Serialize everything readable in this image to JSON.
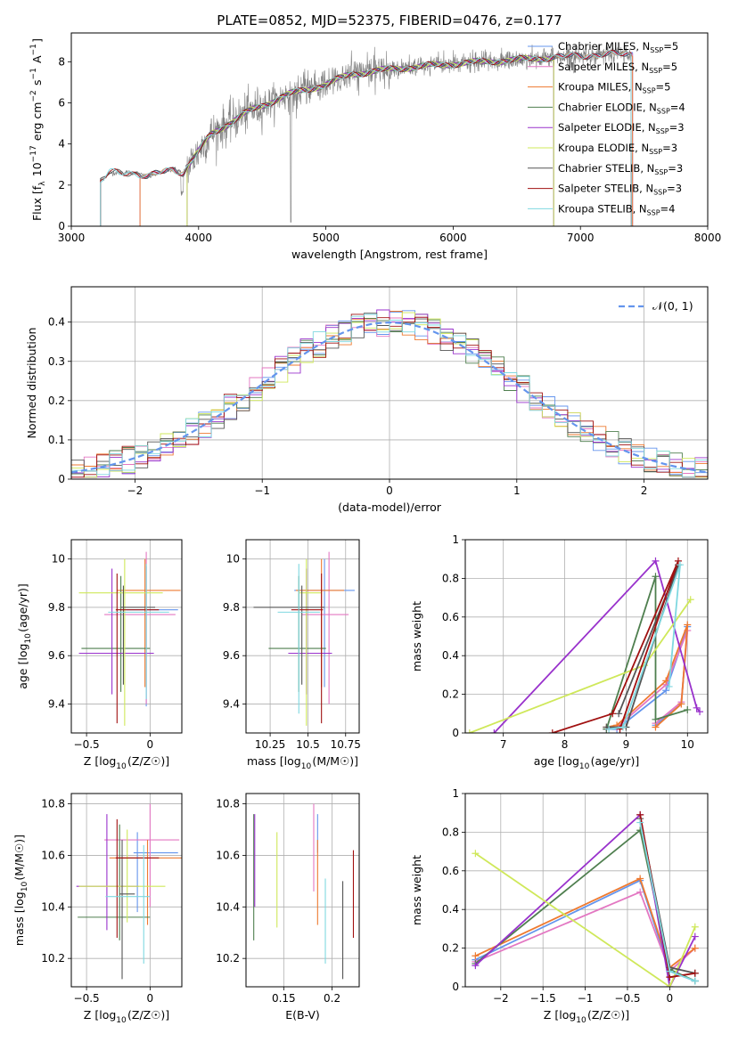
{
  "figure_title": "PLATE=0852, MJD=52375, FIBERID=0476, z=0.177",
  "colors": {
    "Chabrier MILES": "#6495ed",
    "Salpeter MILES": "#e377c2",
    "Kroupa MILES": "#ee7a30",
    "Chabrier ELODIE": "#4f7f4f",
    "Salpeter ELODIE": "#9932cc",
    "Kroupa ELODIE": "#cfe85a",
    "Chabrier STELIB": "#555555",
    "Salpeter STELIB": "#a01010",
    "Kroupa STELIB": "#7fd8e0",
    "data": "#808080",
    "normal": "#6495ed"
  },
  "chart_data": [
    {
      "id": "spectrum",
      "type": "line",
      "xlabel": "wavelength [Angstrom, rest frame]",
      "ylabel": "Flux [f_λ 10^-17 erg cm^-2 s^-1 A^-1]",
      "xlim": [
        3000,
        8000
      ],
      "ylim": [
        0,
        9.4
      ],
      "xticks": [
        3000,
        4000,
        5000,
        6000,
        7000,
        8000
      ],
      "yticks": [
        0,
        2,
        4,
        6,
        8
      ],
      "grid": false,
      "legend_position": "right",
      "legend": [
        {
          "model": "Chabrier MILES",
          "n": "5"
        },
        {
          "model": "Salpeter MILES",
          "n": "5"
        },
        {
          "model": "Kroupa MILES",
          "n": "5"
        },
        {
          "model": "Chabrier ELODIE",
          "n": "4"
        },
        {
          "model": "Salpeter ELODIE",
          "n": "3"
        },
        {
          "model": "Kroupa ELODIE",
          "n": "3"
        },
        {
          "model": "Chabrier STELIB",
          "n": "3"
        },
        {
          "model": "Salpeter STELIB",
          "n": "3"
        },
        {
          "model": "Kroupa STELIB",
          "n": "4"
        }
      ],
      "model_ranges": {
        "Chabrier MILES": [
          3540,
          7410
        ],
        "Salpeter MILES": [
          3540,
          7410
        ],
        "Kroupa MILES": [
          3540,
          7410
        ],
        "Chabrier ELODIE": [
          3910,
          6790
        ],
        "Salpeter ELODIE": [
          3910,
          6790
        ],
        "Kroupa ELODIE": [
          3910,
          6790
        ],
        "Chabrier STELIB": [
          3230,
          7400
        ],
        "Salpeter STELIB": [
          3230,
          7400
        ],
        "Kroupa STELIB": [
          3230,
          7400
        ]
      },
      "data_range": [
        3230,
        7410
      ],
      "continuum_knots": [
        [
          3230,
          2.2
        ],
        [
          3300,
          2.6
        ],
        [
          3500,
          2.6
        ],
        [
          3600,
          2.4
        ],
        [
          3800,
          2.8
        ],
        [
          3880,
          2.6
        ],
        [
          3960,
          3.3
        ],
        [
          4100,
          4.5
        ],
        [
          4400,
          5.6
        ],
        [
          4700,
          6.4
        ],
        [
          5000,
          6.9
        ],
        [
          5200,
          7.4
        ],
        [
          5600,
          7.7
        ],
        [
          6000,
          7.9
        ],
        [
          6500,
          8.1
        ],
        [
          7000,
          8.3
        ],
        [
          7410,
          8.4
        ]
      ]
    },
    {
      "id": "residuals",
      "type": "histogram",
      "xlabel": "(data-model)/error",
      "ylabel": "Normed distribution",
      "xlim": [
        -2.5,
        2.5
      ],
      "ylim": [
        0,
        0.49
      ],
      "xticks": [
        -2,
        -1,
        0,
        1,
        2
      ],
      "yticks": [
        0.0,
        0.1,
        0.2,
        0.3,
        0.4
      ],
      "grid": true,
      "bin_width": 0.1,
      "legend": "𝒩(0, 1)",
      "legend_position": "top-right"
    },
    {
      "id": "age-vs-Z",
      "type": "errorbar",
      "xlabel": "Z [log10(Z/Z☉)]",
      "ylabel": "age  [log10(age/yr)]",
      "xlim": [
        -0.62,
        0.25
      ],
      "ylim": [
        9.28,
        10.08
      ],
      "xticks": [
        -0.5,
        0.0
      ],
      "yticks": [
        9.4,
        9.6,
        9.8,
        10.0
      ],
      "grid": true,
      "points": [
        {
          "model": "Chabrier MILES",
          "x": -0.03,
          "y": 9.79,
          "ex": [
            0.16,
            0.25
          ],
          "ey": [
            0.4,
            0.18
          ]
        },
        {
          "model": "Salpeter MILES",
          "x": -0.03,
          "y": 9.77,
          "ex": [
            0.33,
            0.23
          ],
          "ey": [
            0.37,
            0.26
          ]
        },
        {
          "model": "Kroupa MILES",
          "x": -0.04,
          "y": 9.87,
          "ex": [
            0.22,
            0.28
          ],
          "ey": [
            0.4,
            0.13
          ]
        },
        {
          "model": "Chabrier ELODIE",
          "x": -0.23,
          "y": 9.63,
          "ex": [
            0.31,
            0.23
          ],
          "ey": [
            0.18,
            0.3
          ]
        },
        {
          "model": "Salpeter ELODIE",
          "x": -0.3,
          "y": 9.61,
          "ex": [
            0.26,
            0.33
          ],
          "ey": [
            0.17,
            0.35
          ]
        },
        {
          "model": "Kroupa ELODIE",
          "x": -0.2,
          "y": 9.86,
          "ex": [
            0.36,
            0.3
          ],
          "ey": [
            0.55,
            0.14
          ]
        },
        {
          "model": "Chabrier STELIB",
          "x": -0.21,
          "y": 9.8,
          "ex": [
            0.02,
            0.25
          ],
          "ey": [
            0.32,
            0.09
          ]
        },
        {
          "model": "Salpeter STELIB",
          "x": -0.26,
          "y": 9.79,
          "ex": [
            0.01,
            0.33
          ],
          "ey": [
            0.47,
            0.15
          ]
        },
        {
          "model": "Kroupa STELIB",
          "x": -0.03,
          "y": 9.78,
          "ex": [
            0.3,
            0.18
          ],
          "ey": [
            0.36,
            0.2
          ]
        }
      ]
    },
    {
      "id": "age-vs-mass",
      "type": "errorbar",
      "xlabel": "mass [log10(M/M☉)]",
      "ylabel": "",
      "xlim": [
        10.09,
        10.84
      ],
      "ylim": [
        9.28,
        10.08
      ],
      "xticks": [
        10.25,
        10.5,
        10.75
      ],
      "yticks": [
        9.4,
        9.6,
        9.8,
        10.0
      ],
      "grid": true,
      "points": [
        {
          "model": "Chabrier MILES",
          "x": 10.61,
          "y": 9.87,
          "ex": [
            0.2,
            0.2
          ],
          "ey": [
            0.4,
            0.13
          ]
        },
        {
          "model": "Salpeter MILES",
          "x": 10.64,
          "y": 9.77,
          "ex": [
            0.18,
            0.13
          ],
          "ey": [
            0.37,
            0.26
          ]
        },
        {
          "model": "Kroupa MILES",
          "x": 10.59,
          "y": 9.87,
          "ex": [
            0.17,
            0.15
          ],
          "ey": [
            0.4,
            0.13
          ]
        },
        {
          "model": "Chabrier ELODIE",
          "x": 10.44,
          "y": 9.63,
          "ex": [
            0.2,
            0.18
          ],
          "ey": [
            0.18,
            0.3
          ]
        },
        {
          "model": "Salpeter ELODIE",
          "x": 10.49,
          "y": 9.61,
          "ex": [
            0.12,
            0.17
          ],
          "ey": [
            0.17,
            0.35
          ]
        },
        {
          "model": "Kroupa ELODIE",
          "x": 10.49,
          "y": 9.86,
          "ex": [
            0.05,
            0.1
          ],
          "ey": [
            0.55,
            0.14
          ]
        },
        {
          "model": "Chabrier STELIB",
          "x": 10.46,
          "y": 9.8,
          "ex": [
            0.32,
            0.15
          ],
          "ey": [
            0.32,
            0.09
          ]
        },
        {
          "model": "Salpeter STELIB",
          "x": 10.59,
          "y": 9.79,
          "ex": [
            0.2,
            0.01
          ],
          "ey": [
            0.47,
            0.15
          ]
        },
        {
          "model": "Kroupa STELIB",
          "x": 10.44,
          "y": 9.78,
          "ex": [
            0.14,
            0.14
          ],
          "ey": [
            0.42,
            0.2
          ]
        }
      ]
    },
    {
      "id": "weight-vs-age",
      "type": "line",
      "xlabel": "age  [log10(age/yr)]",
      "ylabel": "mass weight",
      "xlim": [
        6.38,
        10.33
      ],
      "ylim": [
        0.0,
        1.0
      ],
      "xticks": [
        7,
        8,
        9,
        10
      ],
      "yticks": [
        0.0,
        0.2,
        0.4,
        0.6,
        0.8,
        1.0
      ],
      "grid": true,
      "series": [
        {
          "model": "Chabrier MILES",
          "x": [
            9.48,
            9.9,
            10.0,
            9.65,
            8.85,
            8.68
          ],
          "y": [
            0.04,
            0.15,
            0.55,
            0.22,
            0.02,
            0.02
          ]
        },
        {
          "model": "Salpeter MILES",
          "x": [
            9.48,
            9.9,
            10.0,
            9.65,
            8.85,
            8.68
          ],
          "y": [
            0.05,
            0.16,
            0.53,
            0.25,
            0.03,
            0.02
          ]
        },
        {
          "model": "Kroupa MILES",
          "x": [
            9.48,
            9.9,
            10.0,
            9.65,
            8.85,
            8.68
          ],
          "y": [
            0.03,
            0.15,
            0.56,
            0.27,
            0.04,
            0.03
          ]
        },
        {
          "model": "Chabrier ELODIE",
          "x": [
            10.0,
            9.48,
            9.48,
            8.68
          ],
          "y": [
            0.12,
            0.07,
            0.81,
            0.02
          ]
        },
        {
          "model": "Salpeter ELODIE",
          "x": [
            6.85,
            9.48,
            10.15,
            10.2
          ],
          "y": [
            0.0,
            0.89,
            0.13,
            0.11
          ]
        },
        {
          "model": "Kroupa ELODIE",
          "x": [
            6.45,
            9.3,
            10.05
          ],
          "y": [
            0.0,
            0.35,
            0.69
          ]
        },
        {
          "model": "Chabrier STELIB",
          "x": [
            8.68,
            9.0,
            9.85,
            8.88
          ],
          "y": [
            0.03,
            0.03,
            0.87,
            0.1
          ]
        },
        {
          "model": "Salpeter STELIB",
          "x": [
            7.8,
            8.78,
            9.85,
            8.9
          ],
          "y": [
            0.0,
            0.1,
            0.89,
            0.02
          ]
        },
        {
          "model": "Kroupa STELIB",
          "x": [
            8.72,
            8.95,
            9.88,
            9.7
          ],
          "y": [
            0.02,
            0.03,
            0.87,
            0.24
          ]
        }
      ]
    },
    {
      "id": "mass-vs-Z",
      "type": "errorbar",
      "xlabel": "Z [log10(Z/Z☉)]",
      "ylabel": "mass [log10(M/M☉)]",
      "xlim": [
        -0.62,
        0.25
      ],
      "ylim": [
        10.09,
        10.84
      ],
      "xticks": [
        -0.5,
        0.0
      ],
      "yticks": [
        10.2,
        10.4,
        10.6,
        10.8
      ],
      "grid": true,
      "points": [
        {
          "model": "Chabrier MILES",
          "x": -0.1,
          "y": 10.61,
          "ex": [
            0.03,
            0.32
          ],
          "ey": [
            0.23,
            0.08
          ]
        },
        {
          "model": "Salpeter MILES",
          "x": 0.0,
          "y": 10.66,
          "ex": [
            0.36,
            0.23
          ],
          "ey": [
            0.26,
            0.14
          ]
        },
        {
          "model": "Kroupa MILES",
          "x": -0.02,
          "y": 10.59,
          "ex": [
            0.3,
            0.27
          ],
          "ey": [
            0.26,
            0.07
          ]
        },
        {
          "model": "Chabrier ELODIE",
          "x": -0.24,
          "y": 10.36,
          "ex": [
            0.33,
            0.24
          ],
          "ey": [
            0.09,
            0.36
          ]
        },
        {
          "model": "Salpeter ELODIE",
          "x": -0.34,
          "y": 10.48,
          "ex": [
            0.24,
            0.25
          ],
          "ey": [
            0.17,
            0.28
          ]
        },
        {
          "model": "Kroupa ELODIE",
          "x": -0.18,
          "y": 10.48,
          "ex": [
            0.38,
            0.3
          ],
          "ey": [
            0.14,
            0.22
          ]
        },
        {
          "model": "Chabrier STELIB",
          "x": -0.22,
          "y": 10.45,
          "ex": [
            0.02,
            0.1
          ],
          "ey": [
            0.33,
            0.21
          ]
        },
        {
          "model": "Salpeter STELIB",
          "x": -0.26,
          "y": 10.59,
          "ex": [
            0.01,
            0.33
          ],
          "ey": [
            0.31,
            0.15
          ]
        },
        {
          "model": "Kroupa STELIB",
          "x": -0.05,
          "y": 10.44,
          "ex": [
            0.3,
            0.05
          ],
          "ey": [
            0.26,
            0.2
          ]
        }
      ]
    },
    {
      "id": "mass-vs-ebv",
      "type": "errorbar",
      "xlabel": "E(B-V)",
      "ylabel": "",
      "xlim": [
        0.111,
        0.228
      ],
      "ylim": [
        10.09,
        10.84
      ],
      "xticks": [
        0.15,
        0.2
      ],
      "yticks": [
        10.2,
        10.4,
        10.6,
        10.8
      ],
      "grid": true,
      "points": [
        {
          "model": "Chabrier MILES",
          "x": 0.185,
          "y": 10.61,
          "ex": [
            0,
            0
          ],
          "ey": [
            0.0,
            0.15
          ]
        },
        {
          "model": "Salpeter MILES",
          "x": 0.181,
          "y": 10.66,
          "ex": [
            0,
            0
          ],
          "ey": [
            0.2,
            0.14
          ]
        },
        {
          "model": "Kroupa MILES",
          "x": 0.185,
          "y": 10.59,
          "ex": [
            0,
            0
          ],
          "ey": [
            0.26,
            0.07
          ]
        },
        {
          "model": "Chabrier ELODIE",
          "x": 0.119,
          "y": 10.52,
          "ex": [
            0,
            0
          ],
          "ey": [
            0.25,
            0.24
          ]
        },
        {
          "model": "Salpeter ELODIE",
          "x": 0.12,
          "y": 10.58,
          "ex": [
            0,
            0
          ],
          "ey": [
            0.18,
            0.18
          ]
        },
        {
          "model": "Kroupa ELODIE",
          "x": 0.143,
          "y": 10.5,
          "ex": [
            0,
            0
          ],
          "ey": [
            0.18,
            0.19
          ]
        },
        {
          "model": "Chabrier STELIB",
          "x": 0.211,
          "y": 10.31,
          "ex": [
            0,
            0
          ],
          "ey": [
            0.19,
            0.19
          ]
        },
        {
          "model": "Salpeter STELIB",
          "x": 0.222,
          "y": 10.45,
          "ex": [
            0,
            0
          ],
          "ey": [
            0.17,
            0.17
          ]
        },
        {
          "model": "Kroupa STELIB",
          "x": 0.193,
          "y": 10.35,
          "ex": [
            0,
            0
          ],
          "ey": [
            0.17,
            0.16
          ]
        }
      ]
    },
    {
      "id": "weight-vs-Z",
      "type": "line",
      "xlabel": "Z [log10(Z/Z☉)]",
      "ylabel": "mass weight",
      "xlim": [
        -2.42,
        0.45
      ],
      "ylim": [
        0.0,
        1.0
      ],
      "xticks": [
        -2.0,
        -1.5,
        -1.0,
        -0.5,
        0.0
      ],
      "yticks": [
        0.0,
        0.2,
        0.4,
        0.6,
        0.8,
        1.0
      ],
      "grid": true,
      "series": [
        {
          "model": "Chabrier MILES",
          "x": [
            -2.3,
            -0.35,
            0.0,
            0.3
          ],
          "y": [
            0.14,
            0.55,
            0.08,
            0.03
          ]
        },
        {
          "model": "Salpeter MILES",
          "x": [
            -2.3,
            -0.35,
            0.0,
            0.3
          ],
          "y": [
            0.13,
            0.49,
            0.08,
            0.2
          ]
        },
        {
          "model": "Kroupa MILES",
          "x": [
            -2.3,
            -0.35,
            0.0,
            0.3
          ],
          "y": [
            0.16,
            0.56,
            0.1,
            0.2
          ]
        },
        {
          "model": "Chabrier ELODIE",
          "x": [
            -2.3,
            -0.35,
            0.0,
            0.3
          ],
          "y": [
            0.12,
            0.81,
            0.09,
            0.03
          ]
        },
        {
          "model": "Salpeter ELODIE",
          "x": [
            -2.3,
            -0.35,
            0.0,
            0.3
          ],
          "y": [
            0.11,
            0.89,
            0.0,
            0.26
          ]
        },
        {
          "model": "Kroupa ELODIE",
          "x": [
            -2.3,
            0.0,
            0.3
          ],
          "y": [
            0.69,
            0.0,
            0.31
          ]
        },
        {
          "model": "Chabrier STELIB",
          "x": [
            -0.35,
            0.0,
            0.3
          ],
          "y": [
            0.87,
            0.1,
            0.07
          ]
        },
        {
          "model": "Salpeter STELIB",
          "x": [
            -0.35,
            0.0,
            0.3
          ],
          "y": [
            0.89,
            0.05,
            0.07
          ]
        },
        {
          "model": "Kroupa STELIB",
          "x": [
            -0.35,
            0.0,
            0.3
          ],
          "y": [
            0.85,
            0.08,
            0.03
          ]
        }
      ]
    }
  ]
}
